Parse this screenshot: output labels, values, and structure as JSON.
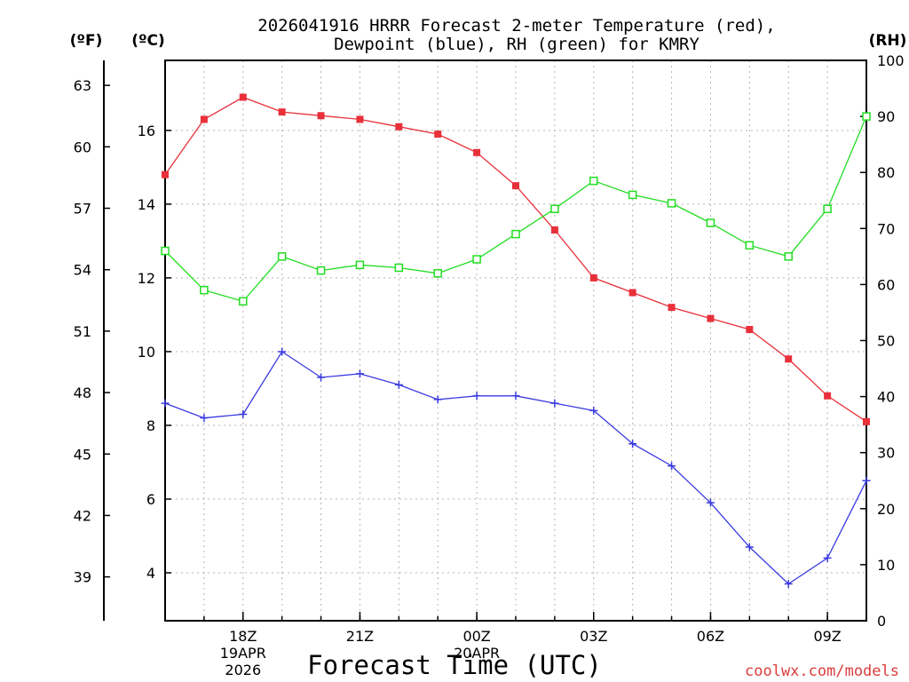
{
  "chart_data": {
    "type": "line",
    "title": "2026041916 HRRR Forecast 2-meter Temperature (red),",
    "title_line2": "Dewpoint (blue), RH (green) for KMRY",
    "xlabel": "Forecast Time (UTC)",
    "credit": "coolwx.com/models",
    "credit_color": "#dc3c3c",
    "units": {
      "fahrenheit": "(ºF)",
      "celsius": "(ºC)",
      "rh": "(RH)"
    },
    "x_hours": [
      16,
      17,
      18,
      19,
      20,
      21,
      22,
      23,
      24,
      25,
      26,
      27,
      28,
      29,
      30,
      31,
      32,
      33,
      34
    ],
    "xlim": [
      16,
      34
    ],
    "x_ticks": [
      {
        "hour": 18,
        "label": "18Z",
        "sub1": "19APR",
        "sub2": "2026"
      },
      {
        "hour": 21,
        "label": "21Z",
        "sub1": "",
        "sub2": ""
      },
      {
        "hour": 24,
        "label": "00Z",
        "sub1": "20APR",
        "sub2": ""
      },
      {
        "hour": 27,
        "label": "03Z",
        "sub1": "",
        "sub2": ""
      },
      {
        "hour": 30,
        "label": "06Z",
        "sub1": "",
        "sub2": ""
      },
      {
        "hour": 33,
        "label": "09Z",
        "sub1": "",
        "sub2": ""
      }
    ],
    "ylim_c": [
      2.7,
      17.9
    ],
    "celsius_ticks": [
      "4",
      "6",
      "8",
      "10",
      "12",
      "14",
      "16"
    ],
    "fahrenheit_ticks": [
      "39",
      "42",
      "45",
      "48",
      "51",
      "54",
      "57",
      "60",
      "63"
    ],
    "ylim_rh": [
      0,
      100
    ],
    "rh_ticks": [
      "0",
      "10",
      "20",
      "30",
      "40",
      "50",
      "60",
      "70",
      "80",
      "90",
      "100"
    ],
    "series": [
      {
        "name": "Temperature",
        "axis": "celsius",
        "color": "#e8303a",
        "marker": "filled-square",
        "values": [
          14.8,
          16.3,
          16.9,
          16.5,
          16.4,
          16.3,
          16.1,
          15.9,
          15.4,
          14.5,
          13.3,
          12.0,
          11.6,
          11.2,
          10.9,
          10.6,
          9.8,
          8.8,
          8.1
        ]
      },
      {
        "name": "Dewpoint",
        "axis": "celsius",
        "color": "#3a3ae0",
        "marker": "plus",
        "values": [
          8.6,
          8.2,
          8.3,
          10.0,
          9.3,
          9.4,
          9.1,
          8.7,
          8.8,
          8.8,
          8.6,
          8.4,
          7.5,
          6.9,
          5.9,
          4.7,
          3.7,
          4.4,
          6.5
        ]
      },
      {
        "name": "RH",
        "axis": "rh",
        "color": "#22dd22",
        "marker": "open-square",
        "values": [
          66,
          59,
          57,
          65,
          62.5,
          63.5,
          63,
          62,
          64.5,
          69,
          73.5,
          78.5,
          76,
          74.5,
          71,
          67,
          65,
          73.5,
          90
        ]
      }
    ]
  }
}
